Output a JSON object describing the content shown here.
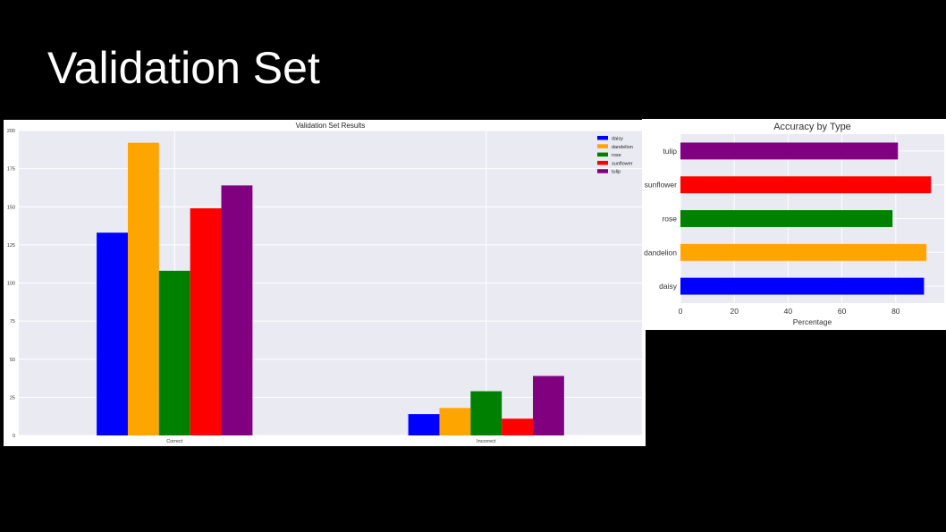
{
  "slide": {
    "title": "Validation Set"
  },
  "chart_data": [
    {
      "type": "bar",
      "title": "Validation Set Results",
      "categories": [
        "Correct",
        "Incorrect"
      ],
      "series": [
        {
          "name": "daisy",
          "color": "#0000ff",
          "values": [
            133,
            14
          ]
        },
        {
          "name": "dandelion",
          "color": "#ffa500",
          "values": [
            192,
            18
          ]
        },
        {
          "name": "rose",
          "color": "#008000",
          "values": [
            108,
            29
          ]
        },
        {
          "name": "sunflower",
          "color": "#ff0000",
          "values": [
            149,
            11
          ]
        },
        {
          "name": "tulip",
          "color": "#800080",
          "values": [
            164,
            39
          ]
        }
      ],
      "ylim": [
        0,
        200
      ],
      "yticks": [
        0,
        25,
        50,
        75,
        100,
        125,
        150,
        175,
        200
      ],
      "grid": true,
      "legend": "top-right",
      "background": "#eaeaf2"
    },
    {
      "type": "bar",
      "orientation": "horizontal",
      "title": "Accuracy by Type",
      "xlabel": "Percentage",
      "categories": [
        "daisy",
        "dandelion",
        "rose",
        "sunflower",
        "tulip"
      ],
      "values": [
        90.5,
        91.4,
        78.8,
        93.1,
        80.8
      ],
      "colors": [
        "#0000ff",
        "#ffa500",
        "#008000",
        "#ff0000",
        "#800080"
      ],
      "xlim": [
        0,
        98
      ],
      "xticks": [
        0,
        20,
        40,
        60,
        80
      ],
      "grid": true,
      "background": "#eaeaf2"
    }
  ]
}
